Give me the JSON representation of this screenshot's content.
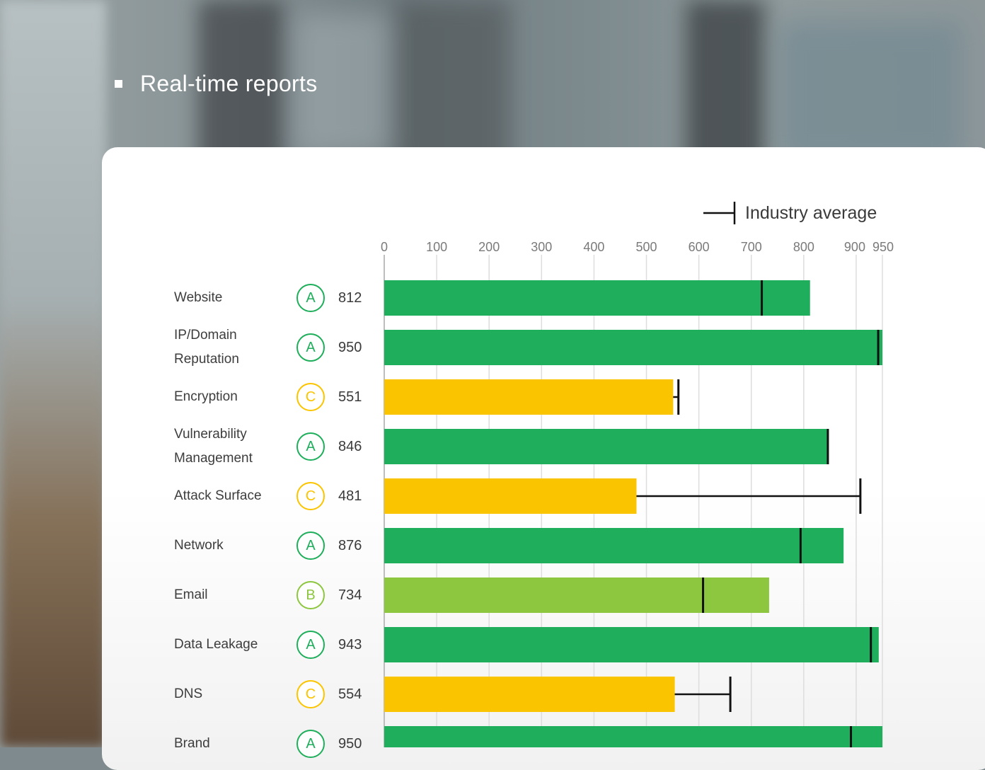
{
  "page": {
    "header_text": "Real-time reports",
    "legend_label": "Industry average",
    "legend_icon": "average-marker-icon"
  },
  "colors": {
    "grade_A": "#1fae5b",
    "grade_B": "#8dc63f",
    "grade_C": "#fbc400",
    "marker": "#111111",
    "gridline": "#dddddd",
    "tick_label": "#7a7a7a"
  },
  "chart_data": {
    "type": "bar",
    "orientation": "horizontal",
    "xlim": [
      0,
      950
    ],
    "x_ticks": [
      "0",
      "100",
      "200",
      "300",
      "400",
      "500",
      "600",
      "700",
      "800",
      "900",
      "950"
    ],
    "grid": true,
    "legend": "top-right",
    "categories": [
      {
        "label": [
          "Website"
        ],
        "grade": "A",
        "score": 812,
        "industry_average": 720
      },
      {
        "label": [
          "IP/Domain",
          "Reputation"
        ],
        "grade": "A",
        "score": 950,
        "industry_average": 942
      },
      {
        "label": [
          "Encryption"
        ],
        "grade": "C",
        "score": 551,
        "industry_average": 561
      },
      {
        "label": [
          "Vulnerability",
          "Management"
        ],
        "grade": "A",
        "score": 846,
        "industry_average": 846
      },
      {
        "label": [
          "Attack Surface"
        ],
        "grade": "C",
        "score": 481,
        "industry_average": 908
      },
      {
        "label": [
          "Network"
        ],
        "grade": "A",
        "score": 876,
        "industry_average": 794
      },
      {
        "label": [
          "Email"
        ],
        "grade": "B",
        "score": 734,
        "industry_average": 608
      },
      {
        "label": [
          "Data Leakage"
        ],
        "grade": "A",
        "score": 943,
        "industry_average": 928
      },
      {
        "label": [
          "DNS"
        ],
        "grade": "C",
        "score": 554,
        "industry_average": 660
      },
      {
        "label": [
          "Brand"
        ],
        "grade": "A",
        "score": 950,
        "industry_average": 890
      }
    ]
  }
}
